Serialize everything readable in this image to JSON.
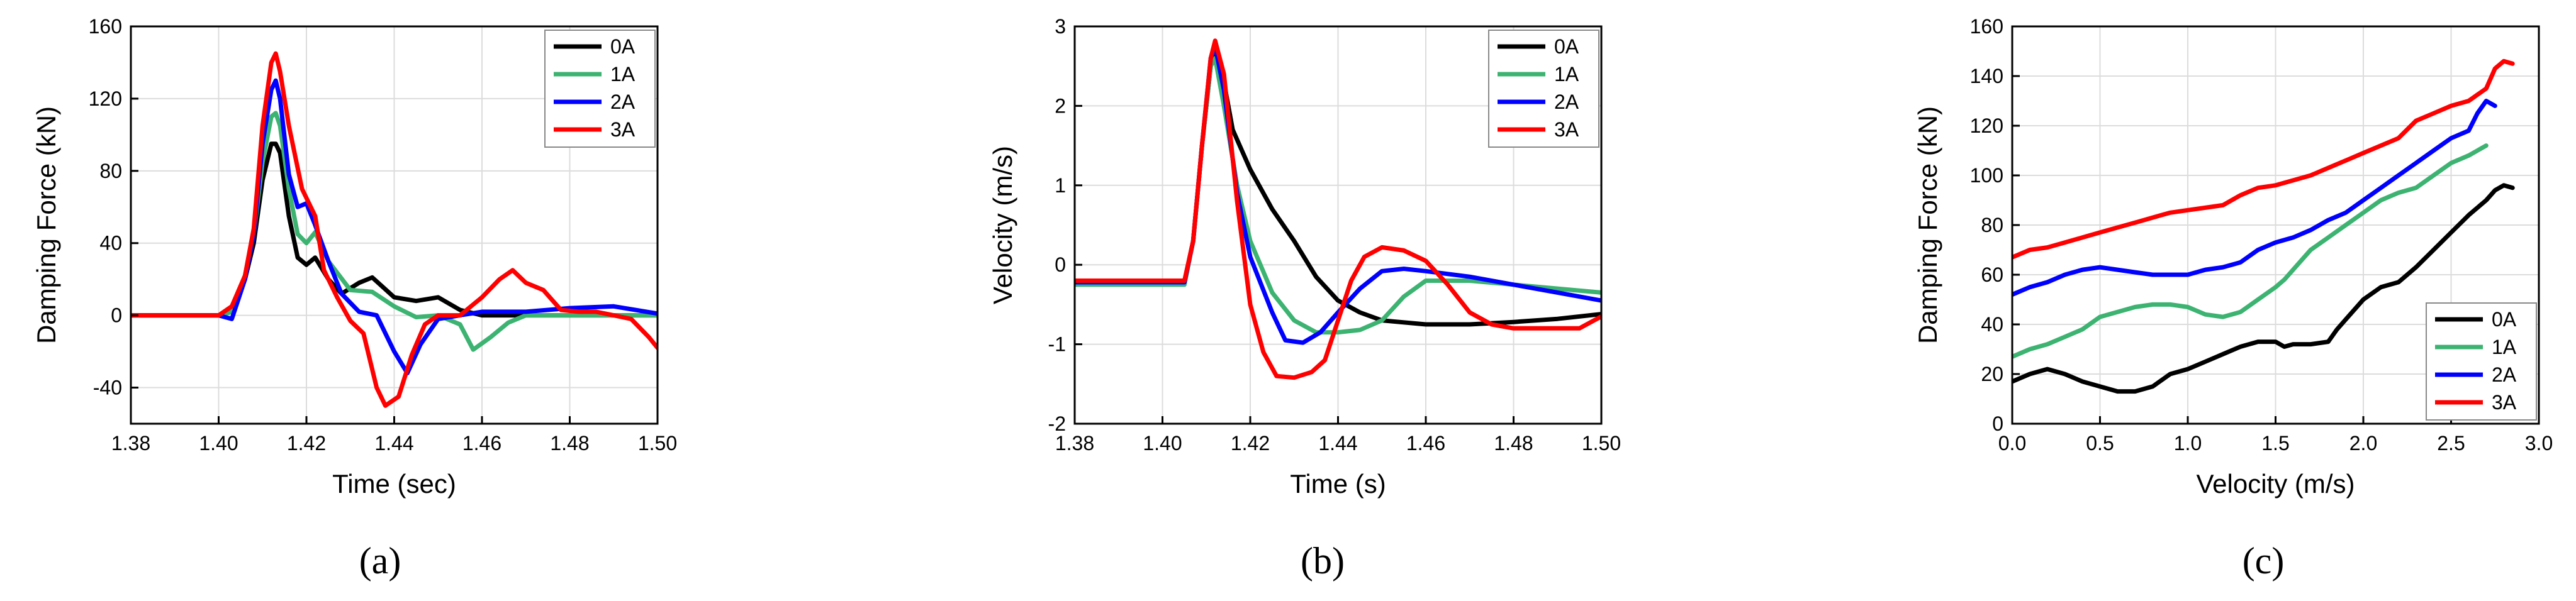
{
  "figure": {
    "panel_labels": [
      "(a)",
      "(b)",
      "(c)"
    ]
  },
  "colors": {
    "0A": "#000000",
    "1A": "#3cb371",
    "2A": "#0000ff",
    "3A": "#ff0000"
  },
  "chart_data": [
    {
      "type": "line",
      "title": "",
      "xlabel": "Time (sec)",
      "ylabel": "Damping Force (kN)",
      "xlim": [
        1.38,
        1.5
      ],
      "ylim": [
        -60,
        160
      ],
      "xticks": [
        1.38,
        1.4,
        1.42,
        1.44,
        1.46,
        1.48,
        1.5
      ],
      "yticks": [
        -40,
        0,
        40,
        80,
        120,
        160
      ],
      "xtick_labels": [
        "1.38",
        "1.40",
        "1.42",
        "1.44",
        "1.46",
        "1.48",
        "1.50"
      ],
      "ytick_labels": [
        "-40",
        "0",
        "40",
        "80",
        "120",
        "160"
      ],
      "grid": true,
      "legend": "top-right",
      "series": [
        {
          "name": "0A",
          "x": [
            1.38,
            1.4,
            1.403,
            1.406,
            1.408,
            1.41,
            1.412,
            1.413,
            1.414,
            1.416,
            1.418,
            1.42,
            1.422,
            1.425,
            1.428,
            1.432,
            1.435,
            1.44,
            1.445,
            1.45,
            1.455,
            1.46,
            1.47,
            1.48,
            1.49,
            1.5
          ],
          "y": [
            0,
            0,
            2,
            20,
            40,
            75,
            95,
            95,
            90,
            55,
            32,
            28,
            32,
            20,
            12,
            18,
            21,
            10,
            8,
            10,
            3,
            0,
            0,
            0,
            0,
            0
          ]
        },
        {
          "name": "1A",
          "x": [
            1.38,
            1.4,
            1.403,
            1.406,
            1.408,
            1.41,
            1.412,
            1.413,
            1.414,
            1.416,
            1.418,
            1.42,
            1.422,
            1.425,
            1.43,
            1.435,
            1.44,
            1.445,
            1.45,
            1.455,
            1.458,
            1.462,
            1.466,
            1.47,
            1.48,
            1.49,
            1.5
          ],
          "y": [
            0,
            0,
            2,
            22,
            45,
            85,
            110,
            112,
            105,
            70,
            45,
            40,
            46,
            30,
            14,
            13,
            5,
            -1,
            0,
            -5,
            -19,
            -12,
            -4,
            0,
            0,
            0,
            0
          ]
        },
        {
          "name": "2A",
          "x": [
            1.38,
            1.4,
            1.403,
            1.406,
            1.408,
            1.41,
            1.412,
            1.413,
            1.414,
            1.416,
            1.418,
            1.42,
            1.422,
            1.425,
            1.428,
            1.432,
            1.436,
            1.44,
            1.443,
            1.446,
            1.45,
            1.455,
            1.46,
            1.47,
            1.48,
            1.49,
            1.5
          ],
          "y": [
            0,
            0,
            -2,
            20,
            45,
            95,
            125,
            130,
            120,
            78,
            60,
            62,
            50,
            30,
            12,
            2,
            0,
            -20,
            -32,
            -16,
            -2,
            0,
            2,
            2,
            4,
            5,
            1
          ]
        },
        {
          "name": "3A",
          "x": [
            1.38,
            1.4,
            1.403,
            1.406,
            1.408,
            1.41,
            1.412,
            1.413,
            1.414,
            1.416,
            1.419,
            1.422,
            1.424,
            1.427,
            1.43,
            1.433,
            1.436,
            1.438,
            1.441,
            1.444,
            1.447,
            1.45,
            1.455,
            1.46,
            1.464,
            1.467,
            1.47,
            1.474,
            1.478,
            1.482,
            1.486,
            1.49,
            1.494,
            1.498,
            1.5
          ],
          "y": [
            0,
            0,
            5,
            22,
            48,
            105,
            140,
            145,
            135,
            105,
            70,
            55,
            25,
            10,
            -3,
            -10,
            -40,
            -50,
            -45,
            -22,
            -5,
            0,
            0,
            10,
            20,
            25,
            18,
            14,
            3,
            2,
            2,
            0,
            -2,
            -12,
            -18
          ]
        }
      ]
    },
    {
      "type": "line",
      "title": "",
      "xlabel": "Time (s)",
      "ylabel": "Velocity (m/s)",
      "xlim": [
        1.38,
        1.5
      ],
      "ylim": [
        -2,
        3
      ],
      "xticks": [
        1.38,
        1.4,
        1.42,
        1.44,
        1.46,
        1.48,
        1.5
      ],
      "yticks": [
        -2,
        -1,
        0,
        1,
        2,
        3
      ],
      "xtick_labels": [
        "1.38",
        "1.40",
        "1.42",
        "1.44",
        "1.46",
        "1.48",
        "1.50"
      ],
      "ytick_labels": [
        "-2",
        "-1",
        "0",
        "1",
        "2",
        "3"
      ],
      "grid": true,
      "legend": "top-right",
      "series": [
        {
          "name": "0A",
          "x": [
            1.38,
            1.405,
            1.407,
            1.409,
            1.411,
            1.412,
            1.414,
            1.416,
            1.42,
            1.425,
            1.43,
            1.435,
            1.44,
            1.445,
            1.45,
            1.46,
            1.47,
            1.48,
            1.49,
            1.5
          ],
          "y": [
            -0.22,
            -0.22,
            0.3,
            1.5,
            2.5,
            2.7,
            2.3,
            1.7,
            1.2,
            0.7,
            0.3,
            -0.15,
            -0.45,
            -0.6,
            -0.7,
            -0.75,
            -0.75,
            -0.72,
            -0.68,
            -0.62
          ]
        },
        {
          "name": "1A",
          "x": [
            1.38,
            1.405,
            1.407,
            1.409,
            1.411,
            1.412,
            1.414,
            1.417,
            1.42,
            1.425,
            1.43,
            1.435,
            1.44,
            1.445,
            1.45,
            1.455,
            1.46,
            1.47,
            1.48,
            1.49,
            1.5
          ],
          "y": [
            -0.25,
            -0.25,
            0.3,
            1.5,
            2.5,
            2.6,
            2.0,
            1.0,
            0.3,
            -0.35,
            -0.7,
            -0.85,
            -0.85,
            -0.82,
            -0.7,
            -0.4,
            -0.2,
            -0.2,
            -0.25,
            -0.3,
            -0.35
          ]
        },
        {
          "name": "2A",
          "x": [
            1.38,
            1.405,
            1.407,
            1.409,
            1.411,
            1.412,
            1.414,
            1.417,
            1.42,
            1.425,
            1.428,
            1.432,
            1.436,
            1.44,
            1.445,
            1.45,
            1.455,
            1.46,
            1.47,
            1.48,
            1.49,
            1.5
          ],
          "y": [
            -0.22,
            -0.22,
            0.3,
            1.5,
            2.6,
            2.75,
            2.2,
            0.9,
            0.1,
            -0.6,
            -0.95,
            -0.98,
            -0.85,
            -0.6,
            -0.3,
            -0.08,
            -0.05,
            -0.08,
            -0.15,
            -0.25,
            -0.35,
            -0.45
          ]
        },
        {
          "name": "3A",
          "x": [
            1.38,
            1.405,
            1.407,
            1.409,
            1.411,
            1.412,
            1.414,
            1.417,
            1.42,
            1.423,
            1.426,
            1.43,
            1.434,
            1.437,
            1.44,
            1.443,
            1.446,
            1.45,
            1.455,
            1.46,
            1.465,
            1.47,
            1.475,
            1.48,
            1.485,
            1.49,
            1.495,
            1.5
          ],
          "y": [
            -0.2,
            -0.2,
            0.3,
            1.5,
            2.6,
            2.82,
            2.4,
            0.8,
            -0.5,
            -1.1,
            -1.4,
            -1.42,
            -1.35,
            -1.2,
            -0.7,
            -0.2,
            0.1,
            0.22,
            0.18,
            0.05,
            -0.25,
            -0.6,
            -0.75,
            -0.8,
            -0.8,
            -0.8,
            -0.8,
            -0.65
          ]
        }
      ]
    },
    {
      "type": "line",
      "title": "",
      "xlabel": "Velocity (m/s)",
      "ylabel": "Damping Force (kN)",
      "xlim": [
        0.0,
        3.0
      ],
      "ylim": [
        0,
        160
      ],
      "xticks": [
        0.0,
        0.5,
        1.0,
        1.5,
        2.0,
        2.5,
        3.0
      ],
      "yticks": [
        0,
        20,
        40,
        60,
        80,
        100,
        120,
        140,
        160
      ],
      "xtick_labels": [
        "0.0",
        "0.5",
        "1.0",
        "1.5",
        "2.0",
        "2.5",
        "3.0"
      ],
      "ytick_labels": [
        "0",
        "20",
        "40",
        "60",
        "80",
        "100",
        "120",
        "140",
        "160"
      ],
      "grid": true,
      "legend": "bottom-right",
      "series": [
        {
          "name": "0A",
          "x": [
            0.0,
            0.1,
            0.2,
            0.3,
            0.4,
            0.5,
            0.6,
            0.7,
            0.8,
            0.9,
            1.0,
            1.1,
            1.2,
            1.3,
            1.4,
            1.5,
            1.55,
            1.6,
            1.7,
            1.8,
            1.85,
            1.9,
            2.0,
            2.1,
            2.2,
            2.3,
            2.4,
            2.5,
            2.6,
            2.7,
            2.75,
            2.8,
            2.85
          ],
          "y": [
            17,
            20,
            22,
            20,
            17,
            15,
            13,
            13,
            15,
            20,
            22,
            25,
            28,
            31,
            33,
            33,
            31,
            32,
            32,
            33,
            38,
            42,
            50,
            55,
            57,
            63,
            70,
            77,
            84,
            90,
            94,
            96,
            95
          ]
        },
        {
          "name": "1A",
          "x": [
            0.0,
            0.1,
            0.2,
            0.3,
            0.4,
            0.5,
            0.6,
            0.7,
            0.8,
            0.9,
            1.0,
            1.1,
            1.2,
            1.3,
            1.4,
            1.5,
            1.55,
            1.6,
            1.7,
            1.8,
            1.9,
            2.0,
            2.1,
            2.2,
            2.3,
            2.4,
            2.5,
            2.6,
            2.65,
            2.7
          ],
          "y": [
            27,
            30,
            32,
            35,
            38,
            43,
            45,
            47,
            48,
            48,
            47,
            44,
            43,
            45,
            50,
            55,
            58,
            62,
            70,
            75,
            80,
            85,
            90,
            93,
            95,
            100,
            105,
            108,
            110,
            112
          ]
        },
        {
          "name": "2A",
          "x": [
            0.0,
            0.1,
            0.2,
            0.3,
            0.4,
            0.5,
            0.6,
            0.7,
            0.8,
            0.9,
            1.0,
            1.1,
            1.2,
            1.3,
            1.4,
            1.5,
            1.6,
            1.7,
            1.8,
            1.9,
            2.0,
            2.1,
            2.2,
            2.3,
            2.4,
            2.5,
            2.6,
            2.65,
            2.7,
            2.75
          ],
          "y": [
            52,
            55,
            57,
            60,
            62,
            63,
            62,
            61,
            60,
            60,
            60,
            62,
            63,
            65,
            70,
            73,
            75,
            78,
            82,
            85,
            90,
            95,
            100,
            105,
            110,
            115,
            118,
            125,
            130,
            128
          ]
        },
        {
          "name": "3A",
          "x": [
            0.0,
            0.1,
            0.2,
            0.3,
            0.4,
            0.5,
            0.6,
            0.7,
            0.8,
            0.9,
            1.0,
            1.1,
            1.2,
            1.3,
            1.4,
            1.5,
            1.6,
            1.7,
            1.8,
            1.9,
            2.0,
            2.1,
            2.2,
            2.3,
            2.4,
            2.5,
            2.6,
            2.7,
            2.75,
            2.8,
            2.85
          ],
          "y": [
            67,
            70,
            71,
            73,
            75,
            77,
            79,
            81,
            83,
            85,
            86,
            87,
            88,
            92,
            95,
            96,
            98,
            100,
            103,
            106,
            109,
            112,
            115,
            122,
            125,
            128,
            130,
            135,
            143,
            146,
            145
          ]
        }
      ]
    }
  ]
}
